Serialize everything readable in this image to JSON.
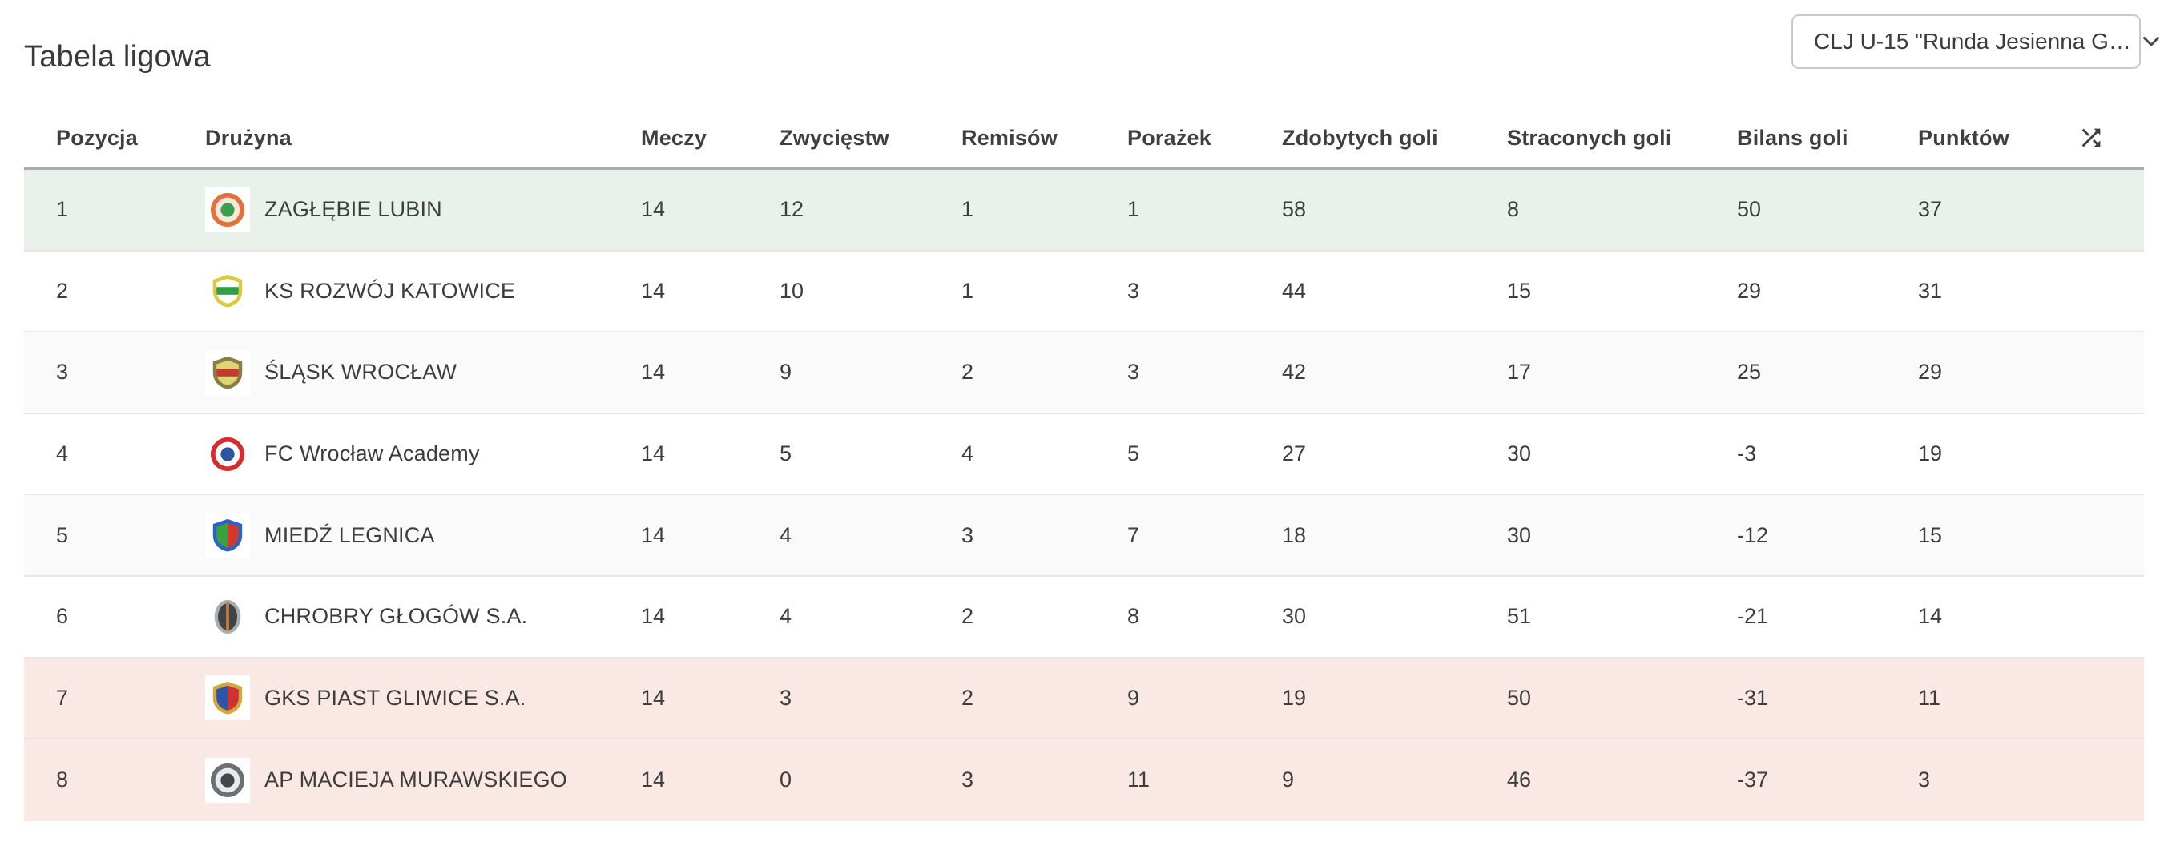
{
  "page": {
    "title": "Tabela ligowa"
  },
  "competition_select": {
    "value": "CLJ U-15 \"Runda Jesienna G…",
    "icon": "chevron-down"
  },
  "table": {
    "columns": [
      "Pozycja",
      "Drużyna",
      "Meczy",
      "Zwycięstw",
      "Remisów",
      "Porażek",
      "Zdobytych goli",
      "Straconych goli",
      "Bilans goli",
      "Punktów"
    ],
    "header_icon": "shuffle",
    "rows": [
      {
        "position": "1",
        "team": "ZAGŁĘBIE LUBIN",
        "logo": {
          "shape": "circle",
          "colors": [
            "#e4703a",
            "#f6e8da",
            "#3c9e4e"
          ]
        },
        "matches": "14",
        "wins": "12",
        "draws": "1",
        "losses": "1",
        "goals_for": "58",
        "goals_against": "8",
        "goal_balance": "50",
        "points": "37",
        "highlight": "green"
      },
      {
        "position": "2",
        "team": "KS ROZWÓJ KATOWICE",
        "logo": {
          "shape": "shield",
          "colors": [
            "#d9cb3d",
            "#ffffff",
            "#2f9e44"
          ]
        },
        "matches": "14",
        "wins": "10",
        "draws": "1",
        "losses": "3",
        "goals_for": "44",
        "goals_against": "15",
        "goal_balance": "29",
        "points": "31",
        "highlight": null
      },
      {
        "position": "3",
        "team": "ŚLĄSK WROCŁAW",
        "logo": {
          "shape": "shield",
          "colors": [
            "#8a7c45",
            "#ded473",
            "#c23a2e"
          ]
        },
        "matches": "14",
        "wins": "9",
        "draws": "2",
        "losses": "3",
        "goals_for": "42",
        "goals_against": "17",
        "goal_balance": "25",
        "points": "29",
        "highlight": null
      },
      {
        "position": "4",
        "team": "FC Wrocław Academy",
        "logo": {
          "shape": "circle",
          "colors": [
            "#d92b2f",
            "#ffffff",
            "#2c55a5"
          ]
        },
        "matches": "14",
        "wins": "5",
        "draws": "4",
        "losses": "5",
        "goals_for": "27",
        "goals_against": "30",
        "goal_balance": "-3",
        "points": "19",
        "highlight": null
      },
      {
        "position": "5",
        "team": "MIEDŹ LEGNICA",
        "logo": {
          "shape": "shield-split",
          "colors": [
            "#2c63c8",
            "#3aa13f",
            "#d03a2e"
          ]
        },
        "matches": "14",
        "wins": "4",
        "draws": "3",
        "losses": "7",
        "goals_for": "18",
        "goals_against": "30",
        "goal_balance": "-12",
        "points": "15",
        "highlight": null
      },
      {
        "position": "6",
        "team": "CHROBRY GŁOGÓW S.A.",
        "logo": {
          "shape": "oval",
          "colors": [
            "#a8adb2",
            "#3e444a",
            "#c77b35"
          ]
        },
        "matches": "14",
        "wins": "4",
        "draws": "2",
        "losses": "8",
        "goals_for": "30",
        "goals_against": "51",
        "goal_balance": "-21",
        "points": "14",
        "highlight": null
      },
      {
        "position": "7",
        "team": "GKS PIAST GLIWICE S.A.",
        "logo": {
          "shape": "shield-split",
          "colors": [
            "#d0a83c",
            "#2c55a5",
            "#cd3333"
          ]
        },
        "matches": "14",
        "wins": "3",
        "draws": "2",
        "losses": "9",
        "goals_for": "19",
        "goals_against": "50",
        "goal_balance": "-31",
        "points": "11",
        "highlight": "red"
      },
      {
        "position": "8",
        "team": "AP MACIEJA MURAWSKIEGO",
        "logo": {
          "shape": "circle",
          "colors": [
            "#6b7075",
            "#e8eaec",
            "#43474b"
          ]
        },
        "matches": "14",
        "wins": "0",
        "draws": "3",
        "losses": "11",
        "goals_for": "9",
        "goals_against": "46",
        "goal_balance": "-37",
        "points": "3",
        "highlight": "red"
      }
    ]
  },
  "colors": {
    "promotion_row": "#e9f2ea",
    "relegation_row": "#fae8e5",
    "stripe_row": "#fafafa",
    "row_border": "#e6e6e6",
    "header_border": "#ababab",
    "text": "#3d3d3d",
    "header_text": "#3f3f3f",
    "select_border": "#c9c9c9"
  }
}
